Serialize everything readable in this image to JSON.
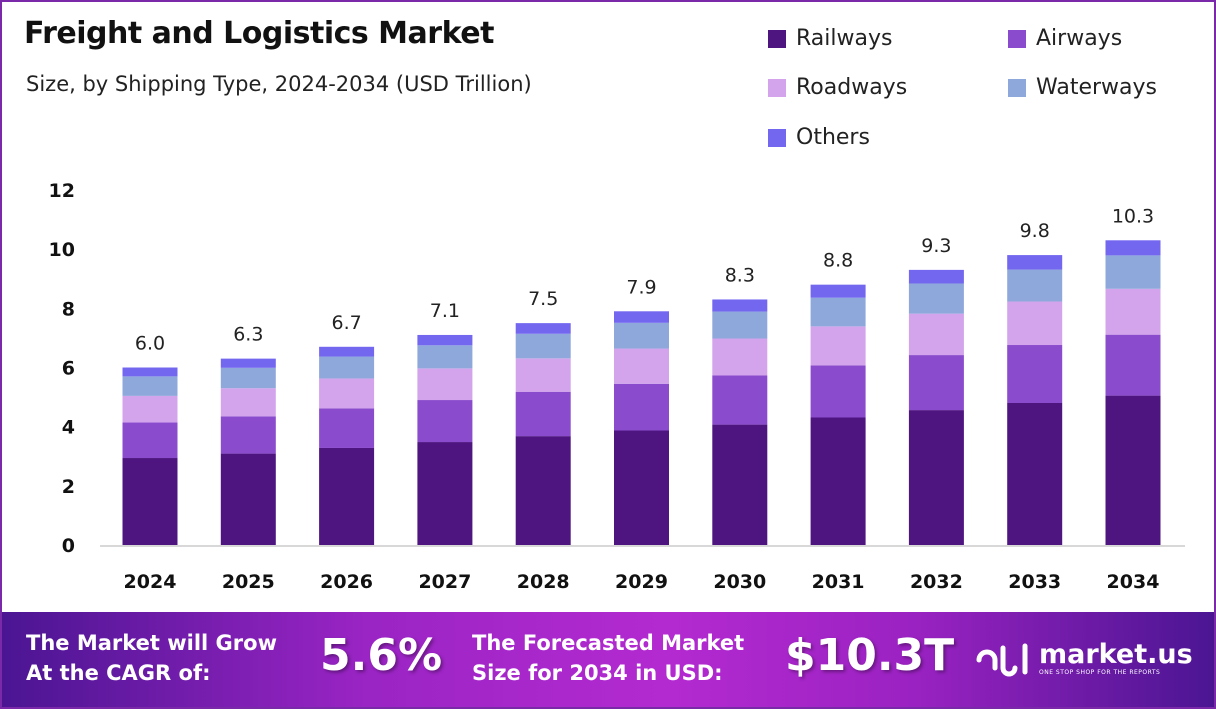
{
  "chart_data": {
    "type": "bar",
    "stacked": true,
    "title": "Freight and Logistics Market",
    "subtitle": "Size, by Shipping Type, 2024-2034 (USD Trillion)",
    "categories": [
      "2024",
      "2025",
      "2026",
      "2027",
      "2028",
      "2029",
      "2030",
      "2031",
      "2032",
      "2033",
      "2034"
    ],
    "series": [
      {
        "name": "Railways",
        "color": "#4e1580",
        "values": [
          2.94,
          3.09,
          3.28,
          3.48,
          3.68,
          3.87,
          4.07,
          4.31,
          4.56,
          4.8,
          5.05
        ]
      },
      {
        "name": "Airways",
        "color": "#8a4bcc",
        "values": [
          1.2,
          1.26,
          1.34,
          1.42,
          1.5,
          1.58,
          1.66,
          1.76,
          1.86,
          1.96,
          2.06
        ]
      },
      {
        "name": "Roadways",
        "color": "#d3a4ec",
        "values": [
          0.9,
          0.95,
          1.01,
          1.07,
          1.13,
          1.19,
          1.25,
          1.32,
          1.4,
          1.47,
          1.55
        ]
      },
      {
        "name": "Waterways",
        "color": "#8fa8db",
        "values": [
          0.66,
          0.69,
          0.74,
          0.78,
          0.83,
          0.87,
          0.91,
          0.97,
          1.02,
          1.08,
          1.13
        ]
      },
      {
        "name": "Others",
        "color": "#7367f0",
        "values": [
          0.3,
          0.31,
          0.33,
          0.35,
          0.36,
          0.39,
          0.41,
          0.44,
          0.46,
          0.49,
          0.51
        ]
      }
    ],
    "totals": [
      "6.0",
      "6.3",
      "6.7",
      "7.1",
      "7.5",
      "7.9",
      "8.3",
      "8.8",
      "9.3",
      "9.8",
      "10.3"
    ],
    "ylim": [
      0,
      12
    ],
    "yticks": [
      "0",
      "2",
      "4",
      "6",
      "8",
      "10",
      "12"
    ],
    "grid": false,
    "legend_position": "top-right"
  },
  "footer": {
    "cagr_label_1": "The Market will Grow",
    "cagr_label_2": "At the CAGR of:",
    "cagr_value": "5.6%",
    "forecast_label_1": "The Forecasted Market",
    "forecast_label_2": "Size for 2034 in USD:",
    "forecast_value": "$10.3T",
    "brand": "market.us",
    "brand_tagline": "ONE STOP SHOP FOR THE REPORTS"
  }
}
